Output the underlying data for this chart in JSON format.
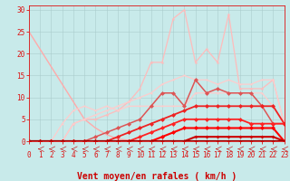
{
  "bg_color": "#c8eaea",
  "grid_color": "#aacccc",
  "xlabel": "Vent moyen/en rafales ( km/h )",
  "x_ticks": [
    0,
    1,
    2,
    3,
    4,
    5,
    6,
    7,
    8,
    9,
    10,
    11,
    12,
    13,
    14,
    15,
    16,
    17,
    18,
    19,
    20,
    21,
    22,
    23
  ],
  "y_ticks": [
    0,
    5,
    10,
    15,
    20,
    25,
    30
  ],
  "xlim": [
    0,
    23
  ],
  "ylim": [
    0,
    31
  ],
  "tick_color": "#dd1111",
  "xlabel_color": "#cc0000",
  "tick_fontsize": 5.5,
  "xlabel_fontsize": 7.0,
  "lines": [
    {
      "x": [
        0,
        1,
        2,
        3,
        4,
        5,
        6,
        7,
        8,
        9,
        10,
        11,
        12,
        13,
        14,
        15,
        16,
        17,
        18,
        19,
        20,
        21,
        22,
        23
      ],
      "y": [
        25,
        21,
        17,
        13,
        9,
        5,
        3,
        1.5,
        0.5,
        0.2,
        0.1,
        0.1,
        0.1,
        0.1,
        0.1,
        0.1,
        0.1,
        0.1,
        0.1,
        0.1,
        0.1,
        0.1,
        0.1,
        0.1
      ],
      "color": "#ffaaaa",
      "lw": 1.0,
      "marker": null,
      "ms": 0
    },
    {
      "x": [
        0,
        1,
        2,
        3,
        4,
        5,
        6,
        7,
        8,
        9,
        10,
        11,
        12,
        13,
        14,
        15,
        16,
        17,
        18,
        19,
        20,
        21,
        22,
        23
      ],
      "y": [
        0,
        0,
        0,
        0,
        4,
        5,
        5,
        6,
        7,
        9,
        12,
        18,
        18,
        28,
        30,
        18,
        21,
        18,
        29,
        12,
        12,
        12,
        14,
        4
      ],
      "color": "#ffbbbb",
      "lw": 0.9,
      "marker": "*",
      "ms": 3.0
    },
    {
      "x": [
        0,
        1,
        2,
        3,
        4,
        5,
        6,
        7,
        8,
        9,
        10,
        11,
        12,
        13,
        14,
        15,
        16,
        17,
        18,
        19,
        20,
        21,
        22,
        23
      ],
      "y": [
        0,
        0,
        0,
        0,
        4,
        5,
        6,
        7,
        8,
        9,
        10,
        11,
        13,
        14,
        15,
        14,
        14,
        13,
        14,
        13,
        13,
        14,
        14,
        4
      ],
      "color": "#ffcccc",
      "lw": 0.9,
      "marker": "*",
      "ms": 2.5
    },
    {
      "x": [
        0,
        1,
        2,
        3,
        4,
        5,
        6,
        7,
        8,
        9,
        10,
        11,
        12,
        13,
        14,
        15,
        16,
        17,
        18,
        19,
        20,
        21,
        22,
        23
      ],
      "y": [
        0,
        0,
        0,
        4,
        7,
        8,
        7,
        8,
        7,
        8,
        8,
        8,
        8,
        8,
        8,
        11,
        11,
        11,
        11,
        11,
        11,
        11,
        8,
        4
      ],
      "color": "#ffcccc",
      "lw": 0.9,
      "marker": "*",
      "ms": 2.5
    },
    {
      "x": [
        0,
        1,
        2,
        3,
        4,
        5,
        6,
        7,
        8,
        9,
        10,
        11,
        12,
        13,
        14,
        15,
        16,
        17,
        18,
        19,
        20,
        21,
        22,
        23
      ],
      "y": [
        0,
        0,
        0,
        0,
        0,
        0,
        1,
        2,
        3,
        4,
        5,
        8,
        11,
        11,
        8,
        14,
        11,
        12,
        11,
        11,
        11,
        8,
        4,
        4
      ],
      "color": "#dd5555",
      "lw": 1.1,
      "marker": "D",
      "ms": 2.5
    },
    {
      "x": [
        0,
        1,
        2,
        3,
        4,
        5,
        6,
        7,
        8,
        9,
        10,
        11,
        12,
        13,
        14,
        15,
        16,
        17,
        18,
        19,
        20,
        21,
        22,
        23
      ],
      "y": [
        0,
        0,
        0,
        0,
        0,
        0,
        0,
        0,
        1,
        2,
        3,
        4,
        5,
        6,
        7,
        8,
        8,
        8,
        8,
        8,
        8,
        8,
        8,
        4
      ],
      "color": "#ee2222",
      "lw": 1.3,
      "marker": "D",
      "ms": 2.5
    },
    {
      "x": [
        0,
        1,
        2,
        3,
        4,
        5,
        6,
        7,
        8,
        9,
        10,
        11,
        12,
        13,
        14,
        15,
        16,
        17,
        18,
        19,
        20,
        21,
        22,
        23
      ],
      "y": [
        0,
        0,
        0,
        0,
        0,
        0,
        0,
        0,
        0,
        0,
        1,
        2,
        3,
        4,
        5,
        5,
        5,
        5,
        5,
        5,
        4,
        4,
        4,
        4
      ],
      "color": "#ff2222",
      "lw": 1.3,
      "marker": "D",
      "ms": 2.5
    },
    {
      "x": [
        0,
        1,
        2,
        3,
        4,
        5,
        6,
        7,
        8,
        9,
        10,
        11,
        12,
        13,
        14,
        15,
        16,
        17,
        18,
        19,
        20,
        21,
        22,
        23
      ],
      "y": [
        0,
        0,
        0,
        0,
        0,
        0,
        0,
        0,
        0,
        0,
        0,
        0,
        1,
        2,
        3,
        3,
        3,
        3,
        3,
        3,
        3,
        3,
        3,
        0
      ],
      "color": "#ff0000",
      "lw": 1.5,
      "marker": "D",
      "ms": 2.5
    },
    {
      "x": [
        0,
        1,
        2,
        3,
        4,
        5,
        6,
        7,
        8,
        9,
        10,
        11,
        12,
        13,
        14,
        15,
        16,
        17,
        18,
        19,
        20,
        21,
        22,
        23
      ],
      "y": [
        0,
        0,
        0,
        0,
        0,
        0,
        0,
        0,
        0,
        0,
        0,
        0,
        0,
        0,
        0,
        1,
        1,
        1,
        1,
        1,
        1,
        1,
        1,
        0
      ],
      "color": "#cc0000",
      "lw": 1.5,
      "marker": "D",
      "ms": 2.0
    },
    {
      "x": [
        0,
        1,
        2,
        3,
        4,
        5,
        6,
        7,
        8,
        9,
        10,
        11,
        12,
        13,
        14,
        15,
        16,
        17,
        18,
        19,
        20,
        21,
        22,
        23
      ],
      "y": [
        0,
        0,
        0,
        0,
        0,
        0,
        0,
        0,
        0,
        0,
        0,
        0,
        0,
        0,
        0,
        0,
        0,
        0,
        0,
        0,
        0,
        0,
        0,
        0
      ],
      "color": "#990000",
      "lw": 1.5,
      "marker": "D",
      "ms": 2.0
    }
  ]
}
